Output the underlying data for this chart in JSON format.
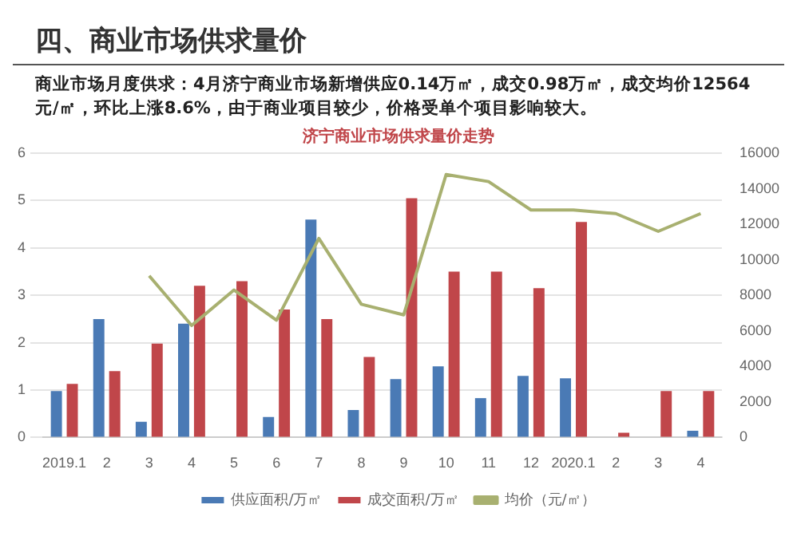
{
  "chart_data": {
    "type": "bar",
    "title": "四、商业市场供求量价",
    "subtitle": "商业市场月度供求：4月济宁商业市场新增供应0.14万㎡，成交0.98万㎡，成交均价12564元/㎡，环比上涨8.6%，由于商业项目较少，价格受单个项目影响较大。",
    "annotations": [
      "济宁商业市场供求量价走势"
    ],
    "categories": [
      "2019.1",
      "2",
      "3",
      "4",
      "5",
      "6",
      "7",
      "8",
      "9",
      "10",
      "11",
      "12",
      "2020.1",
      "2",
      "3",
      "4"
    ],
    "series": [
      {
        "name": "供应面积/万㎡",
        "color": "#4a7ab5",
        "values": [
          0.98,
          2.5,
          0.33,
          2.4,
          0,
          0.43,
          4.6,
          0.58,
          1.23,
          1.5,
          0.83,
          1.3,
          1.25,
          0,
          0,
          0.14
        ]
      },
      {
        "name": "成交面积/万㎡",
        "color": "#c0464a",
        "values": [
          1.13,
          1.4,
          1.98,
          3.2,
          3.3,
          2.7,
          2.5,
          1.7,
          5.05,
          3.5,
          3.5,
          3.15,
          4.55,
          0.1,
          0.98,
          0.98
        ]
      },
      {
        "name": "均价（元/㎡）",
        "type": "line",
        "axis": "y2",
        "color": "#a8b070",
        "values": [
          null,
          null,
          9100,
          6300,
          8300,
          6600,
          11200,
          7500,
          6900,
          14800,
          14400,
          12800,
          12800,
          12600,
          11600,
          12600
        ]
      }
    ],
    "ylim": [
      0,
      6
    ],
    "yticks": [
      0,
      1,
      2,
      3,
      4,
      5,
      6
    ],
    "y2lim": [
      0,
      16000
    ],
    "y2ticks": [
      0,
      2000,
      4000,
      6000,
      8000,
      10000,
      12000,
      14000,
      16000
    ],
    "grid": "y",
    "legend": "bottom",
    "marker": "none",
    "line_style": "solid"
  }
}
